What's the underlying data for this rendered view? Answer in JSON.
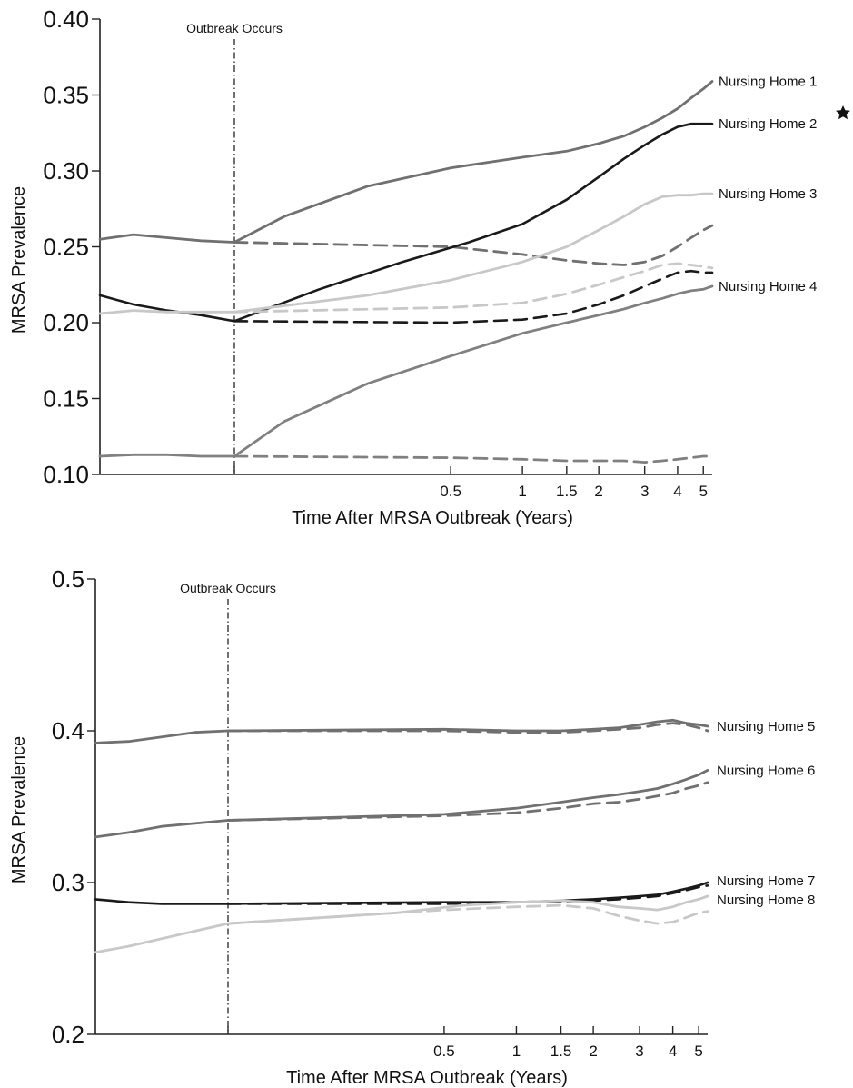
{
  "chart_data": [
    {
      "type": "line",
      "ylabel": "MRSA Prevalence",
      "xlabel": "Time After MRSA Outbreak (Years)",
      "ylim": [
        0.1,
        0.4
      ],
      "yticks": [
        "0.10",
        "0.15",
        "0.20",
        "0.25",
        "0.30",
        "0.35",
        "0.40"
      ],
      "xlim": [
        -1.6,
        5.4
      ],
      "xticks": [
        "0.5",
        "1",
        "1.5",
        "2",
        "3",
        "4",
        "5"
      ],
      "annotation": "Outbreak Occurs",
      "outbreak_x": 0,
      "series": [
        {
          "name": "Nursing Home 1",
          "color": "#707070",
          "style": "solid",
          "points": [
            [
              -1.6,
              0.255
            ],
            [
              -1.2,
              0.258
            ],
            [
              -0.8,
              0.256
            ],
            [
              -0.4,
              0.254
            ],
            [
              0,
              0.253
            ],
            [
              0.05,
              0.27
            ],
            [
              0.2,
              0.29
            ],
            [
              0.5,
              0.302
            ],
            [
              1,
              0.309
            ],
            [
              1.5,
              0.313
            ],
            [
              2,
              0.318
            ],
            [
              2.5,
              0.323
            ],
            [
              3,
              0.329
            ],
            [
              3.5,
              0.335
            ],
            [
              4,
              0.341
            ],
            [
              4.5,
              0.348
            ],
            [
              5,
              0.354
            ],
            [
              5.4,
              0.359
            ]
          ]
        },
        {
          "name": "",
          "color": "#707070",
          "style": "dashed",
          "points": [
            [
              0,
              0.253
            ],
            [
              0.5,
              0.25
            ],
            [
              1,
              0.245
            ],
            [
              1.5,
              0.241
            ],
            [
              2,
              0.239
            ],
            [
              2.5,
              0.238
            ],
            [
              3,
              0.24
            ],
            [
              3.5,
              0.244
            ],
            [
              4,
              0.25
            ],
            [
              4.5,
              0.256
            ],
            [
              5,
              0.261
            ],
            [
              5.4,
              0.264
            ]
          ]
        },
        {
          "name": "Nursing Home 2",
          "color": "#1a1a1a",
          "style": "solid",
          "points": [
            [
              -1.6,
              0.218
            ],
            [
              -1.2,
              0.212
            ],
            [
              -0.8,
              0.208
            ],
            [
              -0.4,
              0.205
            ],
            [
              0,
              0.201
            ],
            [
              0.1,
              0.222
            ],
            [
              0.3,
              0.24
            ],
            [
              0.6,
              0.253
            ],
            [
              1,
              0.265
            ],
            [
              1.5,
              0.281
            ],
            [
              2,
              0.296
            ],
            [
              2.5,
              0.308
            ],
            [
              3,
              0.317
            ],
            [
              3.5,
              0.324
            ],
            [
              4,
              0.329
            ],
            [
              4.5,
              0.331
            ],
            [
              5,
              0.331
            ],
            [
              5.4,
              0.331
            ]
          ]
        },
        {
          "name": "",
          "color": "#1a1a1a",
          "style": "dashed",
          "points": [
            [
              0,
              0.201
            ],
            [
              0.5,
              0.2
            ],
            [
              1,
              0.202
            ],
            [
              1.5,
              0.206
            ],
            [
              2,
              0.212
            ],
            [
              2.5,
              0.218
            ],
            [
              3,
              0.224
            ],
            [
              3.5,
              0.229
            ],
            [
              4,
              0.233
            ],
            [
              4.5,
              0.234
            ],
            [
              5,
              0.233
            ],
            [
              5.4,
              0.233
            ]
          ]
        },
        {
          "name": "Nursing Home 3",
          "color": "#c8c8c8",
          "style": "solid",
          "points": [
            [
              -1.6,
              0.206
            ],
            [
              -1.2,
              0.208
            ],
            [
              -0.8,
              0.207
            ],
            [
              -0.4,
              0.207
            ],
            [
              0,
              0.207
            ],
            [
              0.2,
              0.218
            ],
            [
              0.5,
              0.228
            ],
            [
              1,
              0.24
            ],
            [
              1.5,
              0.25
            ],
            [
              2,
              0.261
            ],
            [
              2.5,
              0.27
            ],
            [
              3,
              0.278
            ],
            [
              3.5,
              0.283
            ],
            [
              4,
              0.284
            ],
            [
              4.5,
              0.284
            ],
            [
              5,
              0.285
            ],
            [
              5.4,
              0.285
            ]
          ]
        },
        {
          "name": "",
          "color": "#c8c8c8",
          "style": "dashed",
          "points": [
            [
              0,
              0.207
            ],
            [
              0.5,
              0.21
            ],
            [
              1,
              0.213
            ],
            [
              1.5,
              0.219
            ],
            [
              2,
              0.225
            ],
            [
              2.5,
              0.23
            ],
            [
              3,
              0.234
            ],
            [
              3.5,
              0.238
            ],
            [
              4,
              0.239
            ],
            [
              4.5,
              0.238
            ],
            [
              5,
              0.237
            ],
            [
              5.4,
              0.236
            ]
          ]
        },
        {
          "name": "Nursing Home 4",
          "color": "#808080",
          "style": "solid",
          "points": [
            [
              -1.6,
              0.112
            ],
            [
              -1.2,
              0.113
            ],
            [
              -0.8,
              0.113
            ],
            [
              -0.4,
              0.112
            ],
            [
              0,
              0.112
            ],
            [
              0.05,
              0.135
            ],
            [
              0.2,
              0.16
            ],
            [
              0.5,
              0.178
            ],
            [
              1,
              0.193
            ],
            [
              1.5,
              0.2
            ],
            [
              2,
              0.205
            ],
            [
              2.5,
              0.209
            ],
            [
              3,
              0.213
            ],
            [
              3.5,
              0.216
            ],
            [
              4,
              0.219
            ],
            [
              4.5,
              0.221
            ],
            [
              5,
              0.222
            ],
            [
              5.4,
              0.224
            ]
          ]
        },
        {
          "name": "",
          "color": "#808080",
          "style": "dashed",
          "points": [
            [
              0,
              0.112
            ],
            [
              0.5,
              0.111
            ],
            [
              1,
              0.11
            ],
            [
              1.5,
              0.109
            ],
            [
              2,
              0.109
            ],
            [
              2.5,
              0.109
            ],
            [
              3,
              0.108
            ],
            [
              3.5,
              0.109
            ],
            [
              4,
              0.11
            ],
            [
              4.5,
              0.111
            ],
            [
              5,
              0.112
            ],
            [
              5.4,
              0.112
            ]
          ]
        }
      ]
    },
    {
      "type": "line",
      "ylabel": "MRSA Prevalence",
      "xlabel": "Time After MRSA Outbreak (Years)",
      "ylim": [
        0.2,
        0.5
      ],
      "yticks": [
        "0.2",
        "0.3",
        "0.4",
        "0.5"
      ],
      "xlim": [
        -1.6,
        5.4
      ],
      "xticks": [
        "0.5",
        "1",
        "1.5",
        "2",
        "3",
        "4",
        "5"
      ],
      "annotation": "Outbreak Occurs",
      "outbreak_x": 0,
      "series": [
        {
          "name": "Nursing Home 5",
          "color": "#707070",
          "style": "solid",
          "points": [
            [
              -1.6,
              0.392
            ],
            [
              -1.2,
              0.393
            ],
            [
              -0.8,
              0.396
            ],
            [
              -0.4,
              0.399
            ],
            [
              0,
              0.4
            ],
            [
              0.5,
              0.401
            ],
            [
              1,
              0.4
            ],
            [
              1.5,
              0.4
            ],
            [
              2,
              0.401
            ],
            [
              2.5,
              0.402
            ],
            [
              3,
              0.404
            ],
            [
              3.5,
              0.406
            ],
            [
              4,
              0.407
            ],
            [
              4.5,
              0.405
            ],
            [
              5,
              0.404
            ],
            [
              5.4,
              0.403
            ]
          ]
        },
        {
          "name": "",
          "color": "#707070",
          "style": "dashed",
          "points": [
            [
              0,
              0.4
            ],
            [
              0.5,
              0.4
            ],
            [
              1,
              0.399
            ],
            [
              1.5,
              0.399
            ],
            [
              2,
              0.4
            ],
            [
              2.5,
              0.401
            ],
            [
              3,
              0.402
            ],
            [
              3.5,
              0.404
            ],
            [
              4,
              0.405
            ],
            [
              4.5,
              0.404
            ],
            [
              5,
              0.402
            ],
            [
              5.4,
              0.4
            ]
          ]
        },
        {
          "name": "Nursing Home 6",
          "color": "#707070",
          "style": "solid",
          "points": [
            [
              -1.6,
              0.33
            ],
            [
              -1.2,
              0.333
            ],
            [
              -0.8,
              0.337
            ],
            [
              -0.4,
              0.339
            ],
            [
              0,
              0.341
            ],
            [
              0.5,
              0.345
            ],
            [
              1,
              0.349
            ],
            [
              1.5,
              0.353
            ],
            [
              2,
              0.356
            ],
            [
              2.5,
              0.358
            ],
            [
              3,
              0.36
            ],
            [
              3.5,
              0.362
            ],
            [
              4,
              0.365
            ],
            [
              4.5,
              0.368
            ],
            [
              5,
              0.371
            ],
            [
              5.4,
              0.374
            ]
          ]
        },
        {
          "name": "",
          "color": "#707070",
          "style": "dashed",
          "points": [
            [
              0,
              0.341
            ],
            [
              0.5,
              0.344
            ],
            [
              1,
              0.346
            ],
            [
              1.5,
              0.349
            ],
            [
              2,
              0.352
            ],
            [
              2.5,
              0.353
            ],
            [
              3,
              0.355
            ],
            [
              3.5,
              0.357
            ],
            [
              4,
              0.359
            ],
            [
              4.5,
              0.362
            ],
            [
              5,
              0.364
            ],
            [
              5.4,
              0.366
            ]
          ]
        },
        {
          "name": "Nursing Home 7",
          "color": "#1a1a1a",
          "style": "solid",
          "points": [
            [
              -1.6,
              0.289
            ],
            [
              -1.2,
              0.287
            ],
            [
              -0.8,
              0.286
            ],
            [
              -0.4,
              0.286
            ],
            [
              0,
              0.286
            ],
            [
              0.5,
              0.287
            ],
            [
              1,
              0.287
            ],
            [
              1.5,
              0.288
            ],
            [
              2,
              0.289
            ],
            [
              2.5,
              0.29
            ],
            [
              3,
              0.291
            ],
            [
              3.5,
              0.292
            ],
            [
              4,
              0.294
            ],
            [
              4.5,
              0.296
            ],
            [
              5,
              0.298
            ],
            [
              5.4,
              0.3
            ]
          ]
        },
        {
          "name": "",
          "color": "#1a1a1a",
          "style": "dashed",
          "points": [
            [
              0,
              0.286
            ],
            [
              0.5,
              0.286
            ],
            [
              1,
              0.287
            ],
            [
              1.5,
              0.287
            ],
            [
              2,
              0.288
            ],
            [
              2.5,
              0.289
            ],
            [
              3,
              0.29
            ],
            [
              3.5,
              0.291
            ],
            [
              4,
              0.293
            ],
            [
              4.5,
              0.295
            ],
            [
              5,
              0.297
            ],
            [
              5.4,
              0.298
            ]
          ]
        },
        {
          "name": "Nursing Home 8",
          "color": "#c8c8c8",
          "style": "solid",
          "points": [
            [
              -1.6,
              0.254
            ],
            [
              -1.2,
              0.258
            ],
            [
              -0.8,
              0.263
            ],
            [
              -0.4,
              0.268
            ],
            [
              0,
              0.273
            ],
            [
              0.3,
              0.28
            ],
            [
              0.6,
              0.285
            ],
            [
              1,
              0.287
            ],
            [
              1.5,
              0.288
            ],
            [
              2,
              0.287
            ],
            [
              2.5,
              0.284
            ],
            [
              3,
              0.283
            ],
            [
              3.5,
              0.282
            ],
            [
              4,
              0.284
            ],
            [
              4.5,
              0.287
            ],
            [
              5,
              0.289
            ],
            [
              5.4,
              0.291
            ]
          ]
        },
        {
          "name": "",
          "color": "#c8c8c8",
          "style": "dashed",
          "points": [
            [
              0,
              0.273
            ],
            [
              0.5,
              0.282
            ],
            [
              1,
              0.284
            ],
            [
              1.5,
              0.285
            ],
            [
              2,
              0.283
            ],
            [
              2.5,
              0.278
            ],
            [
              3,
              0.275
            ],
            [
              3.5,
              0.273
            ],
            [
              4,
              0.274
            ],
            [
              4.5,
              0.277
            ],
            [
              5,
              0.28
            ],
            [
              5.4,
              0.281
            ]
          ]
        }
      ]
    }
  ]
}
